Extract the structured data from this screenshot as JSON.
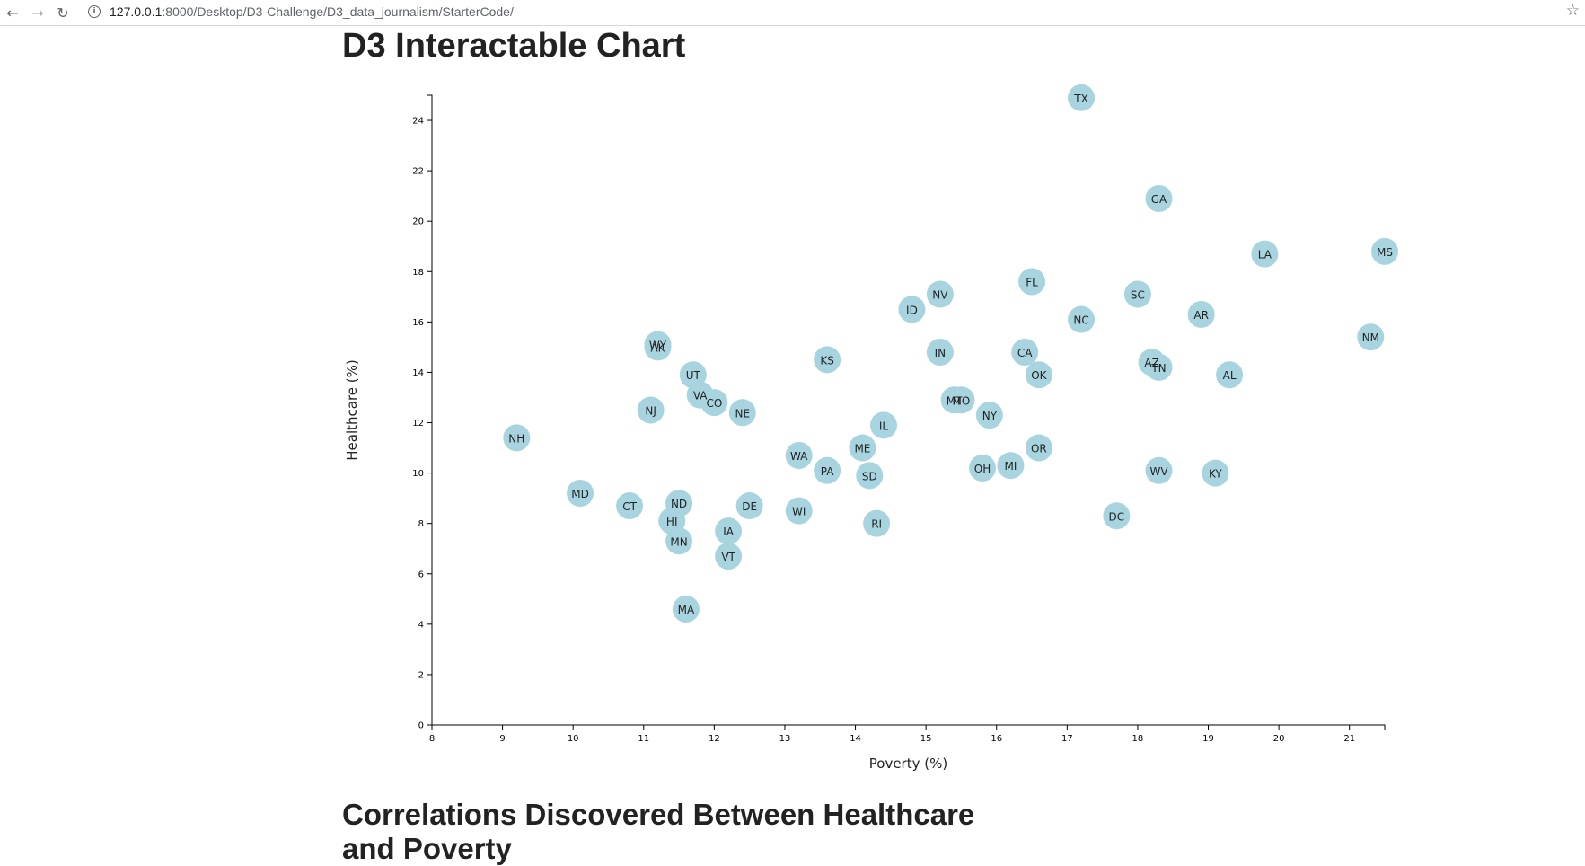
{
  "browser": {
    "back_icon": "←",
    "forward_icon": "→",
    "reload_icon": "↻",
    "info_icon": "i",
    "url_host": "127.0.0.1",
    "url_path": ":8000/Desktop/D3-Challenge/D3_data_journalism/StarterCode/",
    "star_icon": "☆"
  },
  "page": {
    "title": "D3 Interactable Chart",
    "section_heading": "Correlations Discovered Between Healthcare and Poverty"
  },
  "colors": {
    "circle_fill": "#a8d4e0",
    "axis": "#000000"
  },
  "chart_data": {
    "type": "scatter",
    "xlabel": "Poverty (%)",
    "ylabel": "Healthcare (%)",
    "xlim": [
      8,
      21.5
    ],
    "ylim": [
      0,
      25
    ],
    "xticks": [
      8,
      9,
      10,
      11,
      12,
      13,
      14,
      15,
      16,
      17,
      18,
      19,
      20,
      21
    ],
    "yticks": [
      0,
      2,
      4,
      6,
      8,
      10,
      12,
      14,
      16,
      18,
      20,
      22,
      24
    ],
    "grid": false,
    "points": [
      {
        "label": "TX",
        "x": 17.2,
        "y": 24.9
      },
      {
        "label": "GA",
        "x": 18.3,
        "y": 20.9
      },
      {
        "label": "LA",
        "x": 19.8,
        "y": 18.7
      },
      {
        "label": "MS",
        "x": 21.5,
        "y": 18.8
      },
      {
        "label": "FL",
        "x": 16.5,
        "y": 17.6
      },
      {
        "label": "NV",
        "x": 15.2,
        "y": 17.1
      },
      {
        "label": "SC",
        "x": 18.0,
        "y": 17.1
      },
      {
        "label": "ID",
        "x": 14.8,
        "y": 16.5
      },
      {
        "label": "AR",
        "x": 18.9,
        "y": 16.3
      },
      {
        "label": "NC",
        "x": 17.2,
        "y": 16.1
      },
      {
        "label": "NM",
        "x": 21.3,
        "y": 15.4
      },
      {
        "label": "WY",
        "x": 11.2,
        "y": 15.1
      },
      {
        "label": "AK",
        "x": 11.2,
        "y": 15.0
      },
      {
        "label": "IN",
        "x": 15.2,
        "y": 14.8
      },
      {
        "label": "CA",
        "x": 16.4,
        "y": 14.8
      },
      {
        "label": "KS",
        "x": 13.6,
        "y": 14.5
      },
      {
        "label": "AZ",
        "x": 18.2,
        "y": 14.4
      },
      {
        "label": "TN",
        "x": 18.3,
        "y": 14.2
      },
      {
        "label": "UT",
        "x": 11.7,
        "y": 13.9
      },
      {
        "label": "OK",
        "x": 16.6,
        "y": 13.9
      },
      {
        "label": "AL",
        "x": 19.3,
        "y": 13.9
      },
      {
        "label": "VA",
        "x": 11.8,
        "y": 13.1
      },
      {
        "label": "MT",
        "x": 15.4,
        "y": 12.9
      },
      {
        "label": "MO",
        "x": 15.5,
        "y": 12.9
      },
      {
        "label": "CO",
        "x": 12.0,
        "y": 12.8
      },
      {
        "label": "NJ",
        "x": 11.1,
        "y": 12.5
      },
      {
        "label": "NE",
        "x": 12.4,
        "y": 12.4
      },
      {
        "label": "NY",
        "x": 15.9,
        "y": 12.3
      },
      {
        "label": "IL",
        "x": 14.4,
        "y": 11.9
      },
      {
        "label": "NH",
        "x": 9.2,
        "y": 11.4
      },
      {
        "label": "ME",
        "x": 14.1,
        "y": 11.0
      },
      {
        "label": "OR",
        "x": 16.6,
        "y": 11.0
      },
      {
        "label": "WA",
        "x": 13.2,
        "y": 10.7
      },
      {
        "label": "MI",
        "x": 16.2,
        "y": 10.3
      },
      {
        "label": "OH",
        "x": 15.8,
        "y": 10.2
      },
      {
        "label": "PA",
        "x": 13.6,
        "y": 10.1
      },
      {
        "label": "WV",
        "x": 18.3,
        "y": 10.1
      },
      {
        "label": "KY",
        "x": 19.1,
        "y": 10.0
      },
      {
        "label": "SD",
        "x": 14.2,
        "y": 9.9
      },
      {
        "label": "MD",
        "x": 10.1,
        "y": 9.2
      },
      {
        "label": "ND",
        "x": 11.5,
        "y": 8.8
      },
      {
        "label": "CT",
        "x": 10.8,
        "y": 8.7
      },
      {
        "label": "DE",
        "x": 12.5,
        "y": 8.7
      },
      {
        "label": "WI",
        "x": 13.2,
        "y": 8.5
      },
      {
        "label": "DC",
        "x": 17.7,
        "y": 8.3
      },
      {
        "label": "HI",
        "x": 11.4,
        "y": 8.1
      },
      {
        "label": "RI",
        "x": 14.3,
        "y": 8.0
      },
      {
        "label": "IA",
        "x": 12.2,
        "y": 7.7
      },
      {
        "label": "MN",
        "x": 11.5,
        "y": 7.3
      },
      {
        "label": "VT",
        "x": 12.2,
        "y": 6.7
      },
      {
        "label": "MA",
        "x": 11.6,
        "y": 4.6
      }
    ]
  }
}
